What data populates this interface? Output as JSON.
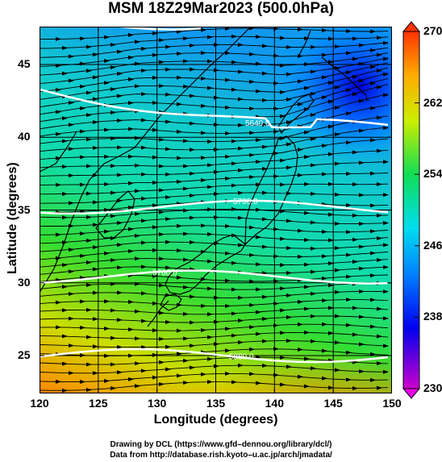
{
  "title": "MSM 18Z29Mar2023 (500.0hPa)",
  "x_axis": {
    "label": "Longitude (degrees)",
    "ticks": [
      "120",
      "125",
      "130",
      "135",
      "140",
      "145",
      "150"
    ],
    "range": [
      120,
      150
    ]
  },
  "y_axis": {
    "label": "Latitude (degrees)",
    "ticks": [
      "25",
      "30",
      "35",
      "40",
      "45"
    ],
    "range": [
      22.4,
      47.6
    ]
  },
  "colorbar": {
    "ticks": [
      "230",
      "238",
      "246",
      "254",
      "262",
      "270"
    ],
    "range": [
      230,
      270
    ],
    "colors": [
      "#cc00cc",
      "#0000ee",
      "#0088ff",
      "#00ddee",
      "#11dd55",
      "#ccee00",
      "#ffaa00",
      "#ff3300"
    ]
  },
  "contours": [
    {
      "label": "5640.0",
      "lat": 40.8
    },
    {
      "label": "5700.0",
      "lat": 35.2
    },
    {
      "label": "5760.0",
      "lat": 30.4
    },
    {
      "label": "5880.0",
      "lat": 25.0
    }
  ],
  "low_center": {
    "lon": 147.2,
    "lat": 43.5
  },
  "credits": {
    "line1": "Drawing by DCL (https://www.gfd–dennou.org/library/dcl/)",
    "line2": "Data from http://database.rish.kyoto–u.ac.jp/arch/jmadata/"
  },
  "colors": {
    "frame": "#000000",
    "contour": "#ffffff",
    "coast": "#000000"
  }
}
